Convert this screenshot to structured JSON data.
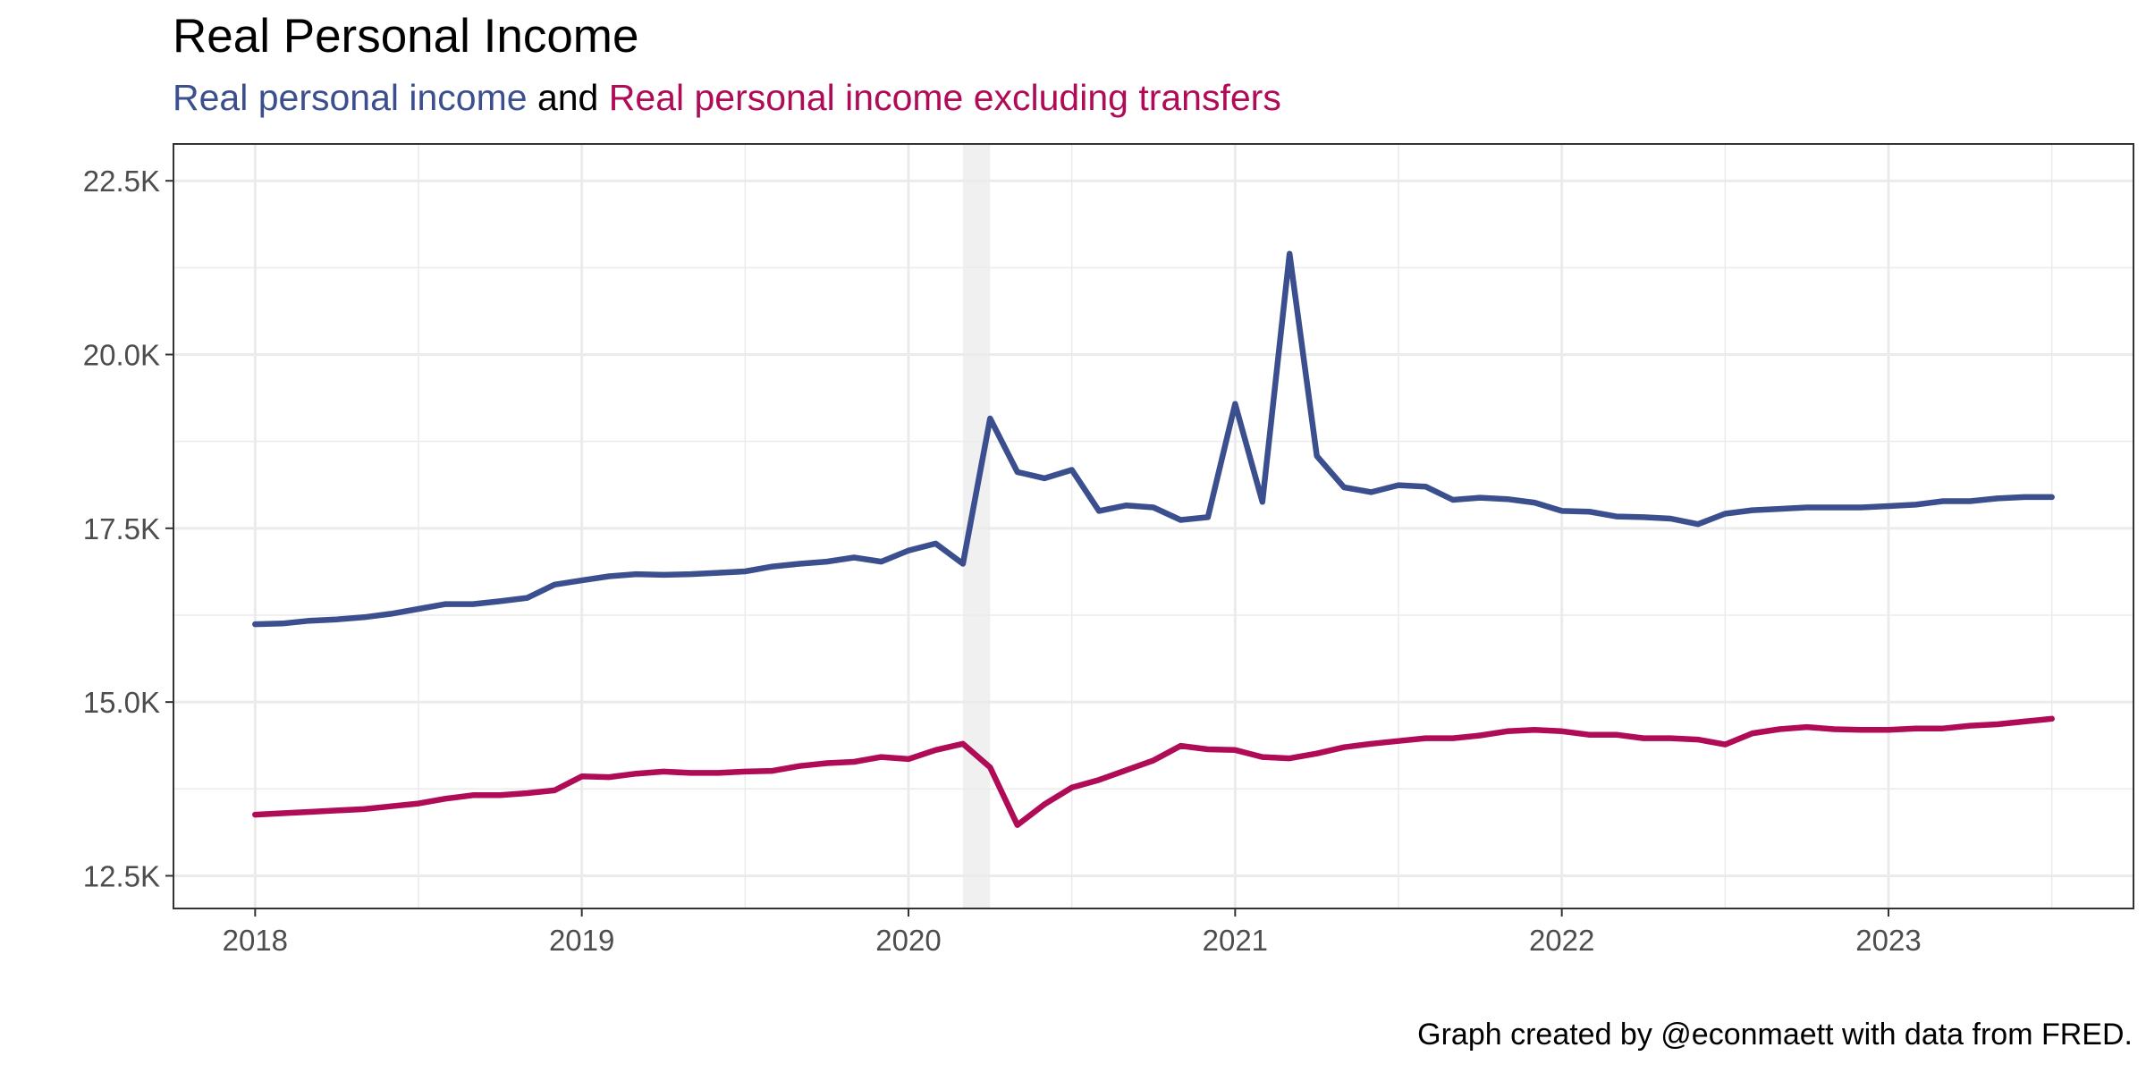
{
  "title": "Real Personal Income",
  "subtitle": {
    "part1": "Real personal income",
    "connector": "and",
    "part2": "Real personal income excluding transfers"
  },
  "caption": "Graph created by @econmaett with data from FRED.",
  "colors": {
    "series1": "#3b4f8f",
    "series2": "#b00b56",
    "shade": "#f0f0f0",
    "grid": "#ebebeb",
    "panel_border": "#333333",
    "tick_text": "#4d4d4d"
  },
  "chart_data": {
    "type": "line",
    "x_unit": "month",
    "x": [
      "2018-01",
      "2018-02",
      "2018-03",
      "2018-04",
      "2018-05",
      "2018-06",
      "2018-07",
      "2018-08",
      "2018-09",
      "2018-10",
      "2018-11",
      "2018-12",
      "2019-01",
      "2019-02",
      "2019-03",
      "2019-04",
      "2019-05",
      "2019-06",
      "2019-07",
      "2019-08",
      "2019-09",
      "2019-10",
      "2019-11",
      "2019-12",
      "2020-01",
      "2020-02",
      "2020-03",
      "2020-04",
      "2020-05",
      "2020-06",
      "2020-07",
      "2020-08",
      "2020-09",
      "2020-10",
      "2020-11",
      "2020-12",
      "2021-01",
      "2021-02",
      "2021-03",
      "2021-04",
      "2021-05",
      "2021-06",
      "2021-07",
      "2021-08",
      "2021-09",
      "2021-10",
      "2021-11",
      "2021-12",
      "2022-01",
      "2022-02",
      "2022-03",
      "2022-04",
      "2022-05",
      "2022-06",
      "2022-07",
      "2022-08",
      "2022-09",
      "2022-10",
      "2022-11",
      "2022-12",
      "2023-01",
      "2023-02",
      "2023-03",
      "2023-04",
      "2023-05",
      "2023-06",
      "2023-07"
    ],
    "series": [
      {
        "name": "Real personal income",
        "values": [
          16120,
          16130,
          16170,
          16190,
          16220,
          16270,
          16340,
          16410,
          16410,
          16450,
          16500,
          16690,
          16750,
          16810,
          16840,
          16830,
          16840,
          16860,
          16880,
          16950,
          16990,
          17020,
          17080,
          17020,
          17180,
          17280,
          16990,
          19080,
          18310,
          18220,
          18340,
          17750,
          17830,
          17800,
          17620,
          17660,
          19290,
          17880,
          21450,
          18540,
          18090,
          18020,
          18120,
          18100,
          17910,
          17940,
          17920,
          17870,
          17750,
          17740,
          17670,
          17660,
          17640,
          17560,
          17710,
          17760,
          17780,
          17800,
          17800,
          17800,
          17820,
          17840,
          17890,
          17890,
          17930,
          17950,
          17950
        ]
      },
      {
        "name": "Real personal income excluding transfers",
        "values": [
          13380,
          13400,
          13420,
          13440,
          13460,
          13500,
          13540,
          13610,
          13660,
          13660,
          13690,
          13730,
          13930,
          13920,
          13970,
          14000,
          13980,
          13980,
          14000,
          14010,
          14080,
          14120,
          14140,
          14210,
          14180,
          14310,
          14400,
          14060,
          13230,
          13530,
          13770,
          13880,
          14020,
          14160,
          14370,
          14320,
          14310,
          14210,
          14190,
          14260,
          14350,
          14400,
          14440,
          14480,
          14480,
          14520,
          14580,
          14600,
          14580,
          14530,
          14530,
          14480,
          14480,
          14460,
          14390,
          14550,
          14610,
          14640,
          14610,
          14600,
          14600,
          14620,
          14620,
          14660,
          14680,
          14720,
          14760
        ]
      }
    ],
    "recession_shade": {
      "start": "2020-03",
      "end": "2020-04"
    },
    "xlim": [
      "2017-10",
      "2023-10"
    ],
    "ylim": [
      12030,
      23030
    ],
    "x_ticks": [
      "2018",
      "2019",
      "2020",
      "2021",
      "2022",
      "2023"
    ],
    "y_ticks": [
      12500,
      15000,
      17500,
      20000,
      22500
    ],
    "y_tick_labels": [
      "12.5K",
      "15.0K",
      "17.5K",
      "20.0K",
      "22.5K"
    ],
    "grid": true,
    "legend": "none"
  }
}
